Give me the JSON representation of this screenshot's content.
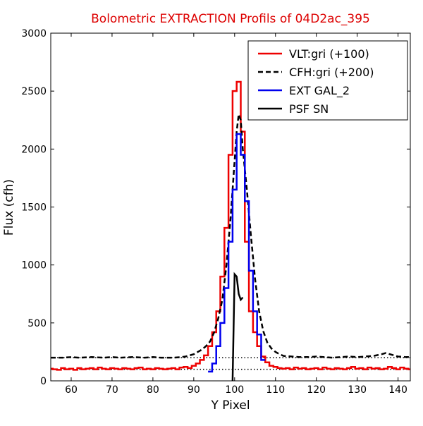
{
  "chart_data": {
    "type": "line",
    "title": "Bolometric EXTRACTION Profils of 04D2ac_395",
    "title_color": "#dd0000",
    "xlabel": "Y Pixel",
    "ylabel": "Flux (cfh)",
    "xlim": [
      55,
      143
    ],
    "ylim": [
      0,
      3000
    ],
    "x_ticks": [
      60,
      70,
      80,
      90,
      100,
      110,
      120,
      130,
      140
    ],
    "x_tick_labels": [
      "60",
      "70",
      "80",
      "90",
      "100",
      "110",
      "120",
      "130",
      "140"
    ],
    "y_ticks": [
      0,
      500,
      1000,
      1500,
      2000,
      2500,
      3000
    ],
    "y_tick_labels": [
      "0",
      "500",
      "1000",
      "1500",
      "2000",
      "2500",
      "3000"
    ],
    "grid": false,
    "legend_position": "top-right",
    "reference_lines": [
      {
        "y": 100,
        "style": "dotted",
        "color": "#000000"
      },
      {
        "y": 200,
        "style": "dotted",
        "color": "#000000"
      }
    ],
    "series": [
      {
        "name": "VLT:gri (+100)",
        "color": "#ee0000",
        "style": "steps",
        "x": [
          55,
          56,
          57,
          58,
          59,
          60,
          61,
          62,
          63,
          64,
          65,
          66,
          67,
          68,
          69,
          70,
          71,
          72,
          73,
          74,
          75,
          76,
          77,
          78,
          79,
          80,
          81,
          82,
          83,
          84,
          85,
          86,
          87,
          88,
          89,
          90,
          91,
          92,
          93,
          94,
          95,
          96,
          97,
          98,
          99,
          100,
          101,
          102,
          103,
          104,
          105,
          106,
          107,
          108,
          109,
          110,
          111,
          112,
          113,
          114,
          115,
          116,
          117,
          118,
          119,
          120,
          121,
          122,
          123,
          124,
          125,
          126,
          127,
          128,
          129,
          130,
          131,
          132,
          133,
          134,
          135,
          136,
          137,
          138,
          139,
          140,
          141,
          142,
          143
        ],
        "y": [
          105,
          100,
          95,
          110,
          100,
          105,
          95,
          110,
          100,
          105,
          110,
          100,
          115,
          105,
          100,
          110,
          105,
          100,
          110,
          105,
          100,
          110,
          115,
          100,
          105,
          100,
          110,
          105,
          100,
          105,
          110,
          100,
          115,
          120,
          110,
          130,
          150,
          180,
          220,
          300,
          420,
          600,
          900,
          1320,
          1950,
          2500,
          2580,
          2150,
          1200,
          600,
          420,
          300,
          210,
          160,
          130,
          120,
          110,
          105,
          110,
          100,
          115,
          105,
          110,
          100,
          105,
          110,
          100,
          115,
          105,
          100,
          110,
          105,
          100,
          110,
          120,
          105,
          110,
          100,
          115,
          105,
          110,
          100,
          105,
          120,
          110,
          100,
          115,
          105,
          100
        ]
      },
      {
        "name": "CFH:gri (+200)",
        "color": "#000000",
        "style": "dashed",
        "x": [
          55,
          58,
          60,
          62,
          65,
          68,
          70,
          72,
          75,
          78,
          80,
          82,
          85,
          87,
          88,
          89,
          90,
          91,
          92,
          93,
          94,
          95,
          96,
          97,
          98,
          99,
          100,
          100.5,
          101,
          101.5,
          102,
          103,
          104,
          105,
          106,
          107,
          108,
          109,
          110,
          111,
          112,
          114,
          116,
          118,
          120,
          122,
          124,
          126,
          128,
          130,
          132,
          134,
          136,
          137,
          138,
          140,
          142,
          143
        ],
        "y": [
          200,
          200,
          205,
          200,
          205,
          200,
          205,
          200,
          205,
          200,
          205,
          200,
          200,
          205,
          210,
          220,
          230,
          250,
          270,
          300,
          340,
          420,
          540,
          700,
          1000,
          1400,
          1900,
          2150,
          2300,
          2250,
          2000,
          1650,
          1250,
          880,
          600,
          430,
          330,
          280,
          250,
          230,
          215,
          210,
          205,
          205,
          210,
          205,
          200,
          205,
          210,
          205,
          210,
          215,
          230,
          240,
          230,
          210,
          205,
          205
        ]
      },
      {
        "name": "EXT GAL_2",
        "color": "#0000ee",
        "style": "steps",
        "x": [
          94,
          95,
          96,
          97,
          98,
          99,
          100,
          101,
          102,
          103,
          104,
          105,
          106,
          107
        ],
        "y": [
          80,
          150,
          300,
          500,
          800,
          1200,
          1650,
          2130,
          1950,
          1550,
          950,
          600,
          400,
          180
        ]
      },
      {
        "name": "PSF SN",
        "color": "#000000",
        "style": "solid",
        "x": [
          99.5,
          100,
          100.5,
          101,
          101.5,
          102
        ],
        "y": [
          0,
          920,
          900,
          750,
          700,
          720
        ]
      }
    ]
  }
}
